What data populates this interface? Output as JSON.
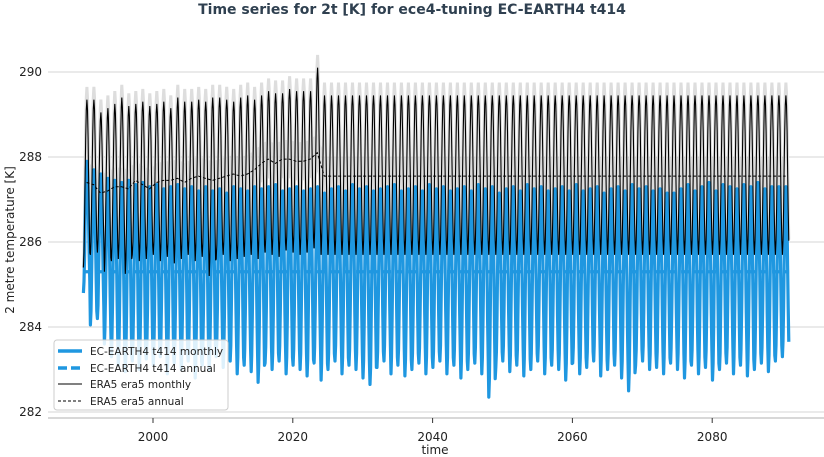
{
  "chart_data": {
    "type": "line",
    "title": "Time series for 2t [K] for ece4-tuning EC-EARTH4 t414",
    "xlabel": "time",
    "ylabel": "2 metre temperature [K]",
    "xlim": [
      1985,
      2096
    ],
    "ylim": [
      282,
      290.7
    ],
    "xticks": [
      "2000",
      "2020",
      "2040",
      "2060",
      "2080"
    ],
    "yticks": [
      "282",
      "284",
      "286",
      "288",
      "290"
    ],
    "grid": "horizontal",
    "legend_position": "lower-left",
    "colors": {
      "model": "#1f97e0",
      "era5": "#000000"
    },
    "legend": [
      "EC-EARTH4 t414 monthly",
      "EC-EARTH4 t414 annual",
      "ERA5 era5 monthly",
      "ERA5 era5 annual"
    ],
    "model_years": [
      1990,
      2090
    ],
    "model_monthly_yearly_max": [
      287.9,
      287.7,
      287.6,
      287.5,
      287.45,
      287.4,
      287.45,
      287.35,
      287.4,
      287.3,
      287.35,
      287.25,
      287.3,
      287.35,
      287.25,
      287.3,
      287.2,
      287.3,
      287.2,
      287.25,
      287.15,
      287.3,
      287.25,
      287.2,
      287.3,
      287.25,
      287.3,
      287.35,
      287.2,
      287.25,
      287.3,
      287.2,
      287.25,
      287.3,
      287.15,
      287.25,
      287.3,
      287.2,
      287.35,
      287.25,
      287.3,
      287.2,
      287.25,
      287.3,
      287.35,
      287.2,
      287.25,
      287.3,
      287.2,
      287.35,
      287.25,
      287.3,
      287.2,
      287.25,
      287.3,
      287.2,
      287.35,
      287.25,
      287.3,
      287.15,
      287.25,
      287.3,
      287.2,
      287.35,
      287.25,
      287.3,
      287.2,
      287.25,
      287.3,
      287.2,
      287.35,
      287.2,
      287.25,
      287.3,
      287.15,
      287.25,
      287.3,
      287.2,
      287.35,
      287.25,
      287.3,
      287.2,
      287.25,
      287.15,
      287.15,
      287.25,
      287.35,
      287.2,
      287.3,
      287.4,
      287.2,
      287.35,
      287.3,
      287.25,
      287.35,
      287.3,
      287.4,
      287.25,
      287.3,
      287.3,
      287.3
    ],
    "model_monthly_yearly_min": [
      284.8,
      284.05,
      284.2,
      283.6,
      283.3,
      283.1,
      282.95,
      283.2,
      283.0,
      283.25,
      283.1,
      283.3,
      282.9,
      283.15,
      283.0,
      283.2,
      282.8,
      283.1,
      283.0,
      283.3,
      283.05,
      283.2,
      282.9,
      283.1,
      282.95,
      282.7,
      283.15,
      283.0,
      283.2,
      282.9,
      283.1,
      283.0,
      282.85,
      283.15,
      282.75,
      283.0,
      283.2,
      282.9,
      283.1,
      283.0,
      282.8,
      282.65,
      283.05,
      283.2,
      282.9,
      283.1,
      282.85,
      283.0,
      283.15,
      282.9,
      283.05,
      283.2,
      282.9,
      283.1,
      282.8,
      283.0,
      283.15,
      282.9,
      282.35,
      283.05,
      283.2,
      282.95,
      283.1,
      282.85,
      283.0,
      283.2,
      282.9,
      283.1,
      283.0,
      282.75,
      283.15,
      282.9,
      283.05,
      283.2,
      282.85,
      283.0,
      283.1,
      282.8,
      282.5,
      283.1,
      283.2,
      283.0,
      283.05,
      282.9,
      283.15,
      283.0,
      282.8,
      283.1,
      282.9,
      283.05,
      282.75,
      283.0,
      283.15,
      282.9,
      283.1,
      282.85,
      283.0,
      283.15,
      282.95,
      283.2,
      283.3
    ],
    "model_annual": 285.3,
    "era5_years": [
      1990,
      2023
    ],
    "era5_monthly_yearly_max": [
      289.35,
      289.35,
      289.05,
      289.15,
      289.25,
      289.4,
      289.2,
      289.25,
      289.3,
      289.2,
      289.25,
      289.3,
      289.15,
      289.4,
      289.3,
      289.3,
      289.35,
      289.3,
      289.4,
      289.4,
      289.35,
      289.3,
      289.4,
      289.45,
      289.35,
      289.45,
      289.55,
      289.5,
      289.5,
      289.6,
      289.55,
      289.55,
      289.55,
      290.1
    ],
    "era5_monthly_yearly_min": [
      285.4,
      285.7,
      285.75,
      285.3,
      285.55,
      285.6,
      285.25,
      285.7,
      285.55,
      285.6,
      285.7,
      285.55,
      285.65,
      285.5,
      285.6,
      285.7,
      285.55,
      285.65,
      285.2,
      285.6,
      285.7,
      285.55,
      285.6,
      285.65,
      285.7,
      285.6,
      285.75,
      285.7,
      285.65,
      285.8,
      285.75,
      285.7,
      285.75,
      285.85
    ],
    "era5_annual": [
      287.4,
      287.35,
      287.15,
      287.2,
      287.3,
      287.3,
      287.25,
      287.45,
      287.35,
      287.25,
      287.4,
      287.45,
      287.45,
      287.5,
      287.4,
      287.5,
      287.55,
      287.5,
      287.45,
      287.5,
      287.55,
      287.6,
      287.55,
      287.6,
      287.7,
      287.85,
      287.95,
      287.85,
      287.95,
      287.95,
      287.9,
      287.9,
      287.95,
      288.1
    ],
    "era5_climatology": {
      "max": 289.45,
      "min": 285.7,
      "annual": 287.55,
      "years": [
        2024,
        2090
      ]
    }
  }
}
